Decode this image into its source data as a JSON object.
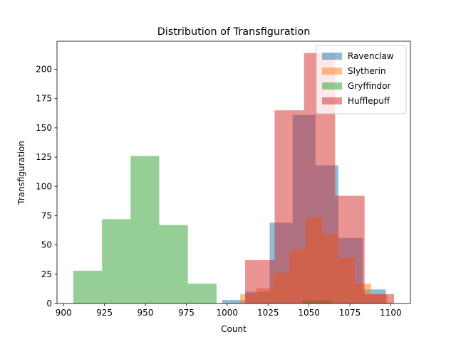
{
  "chart_data": {
    "type": "histogram",
    "title": "Distribution of Transfiguration",
    "x_label": "Count",
    "y_label": "Transfiguration",
    "xlim": [
      896,
      1112
    ],
    "ylim": [
      0,
      224
    ],
    "xticks": [
      900,
      925,
      950,
      975,
      1000,
      1025,
      1050,
      1075,
      1100
    ],
    "yticks": [
      0,
      25,
      50,
      75,
      100,
      125,
      150,
      175,
      200
    ],
    "legend": "upper right",
    "opacity": 0.5,
    "series": [
      {
        "name": "Ravenclaw",
        "color": "#1f77b4",
        "bins": [
          997,
          1011,
          1026,
          1040,
          1054,
          1068,
          1083,
          1097
        ],
        "counts": [
          3,
          10,
          69,
          161,
          118,
          56,
          12
        ]
      },
      {
        "name": "Slytherin",
        "color": "#ff7f0e",
        "bins": [
          1008,
          1018,
          1028,
          1038,
          1048,
          1058,
          1068,
          1078,
          1088,
          1098
        ],
        "counts": [
          8,
          13,
          26,
          46,
          73,
          59,
          39,
          17,
          8
        ]
      },
      {
        "name": "Gryffindor",
        "color": "#2ca02c",
        "bins": [
          906,
          923.5,
          941,
          958.5,
          976,
          993.5,
          1011,
          1028.5,
          1046,
          1063.5,
          1081
        ],
        "counts": [
          28,
          72,
          126,
          67,
          17,
          0,
          0,
          0,
          3,
          0
        ]
      },
      {
        "name": "Hufflepuff",
        "color": "#d62728",
        "bins": [
          1011,
          1029,
          1047,
          1066,
          1084,
          1102
        ],
        "counts": [
          37,
          165,
          214,
          92,
          8
        ]
      }
    ]
  }
}
